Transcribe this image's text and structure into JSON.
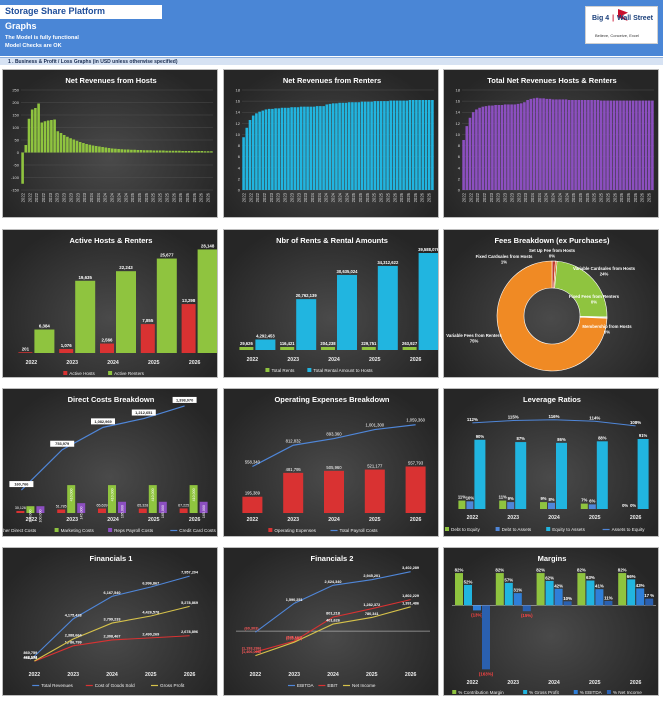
{
  "header": {
    "app_title": "Storage Share Platform",
    "sheet_title": "Graphs",
    "status_1": "The Model is fully functional",
    "status_2": "Model Checks are OK",
    "logo_text_1": "Big 4",
    "logo_text_2": "Wall Street",
    "logo_tagline": "Believe, Conceive, Excel"
  },
  "section": {
    "label": "1 .   Business & Profit / Loss Graphs (in USD unless otherwise specified)"
  },
  "colors": {
    "green": "#8fc43f",
    "cyan": "#21b5e0",
    "purple": "#8c4fc0",
    "red": "#d93232",
    "orange": "#f08a24",
    "line_blue": "#4f86d8",
    "gold": "#d6c24a"
  },
  "chart_data": [
    {
      "id": "net-rev-hosts",
      "type": "bar",
      "title": "Net Revenues from Hosts",
      "ylim": [
        -150,
        250
      ],
      "yticks": [
        -150,
        -100,
        -50,
        0,
        50,
        100,
        150,
        200,
        250
      ],
      "xtick_labels": [
        "2022",
        "2022",
        "2022",
        "2022",
        "2023",
        "2023",
        "2023",
        "2023",
        "2023",
        "2023",
        "2024",
        "2024",
        "2024",
        "2024",
        "2024",
        "2024",
        "2025",
        "2025",
        "2025",
        "2025",
        "2025",
        "2025",
        "2026",
        "2026",
        "2026",
        "2026",
        "2026",
        "2026"
      ],
      "values": [
        -125,
        30,
        135,
        172,
        178,
        196,
        120,
        125,
        128,
        130,
        132,
        85,
        78,
        70,
        63,
        57,
        52,
        47,
        42,
        38,
        34,
        31,
        28,
        26,
        24,
        22,
        20,
        18,
        16,
        15,
        14,
        13,
        12,
        12,
        11,
        11,
        10,
        10,
        9,
        9,
        9,
        8,
        8,
        8,
        8,
        7,
        7,
        7,
        7,
        7,
        6,
        6,
        6,
        6,
        6,
        6,
        6,
        5,
        5,
        5
      ]
    },
    {
      "id": "net-rev-renters",
      "type": "bar",
      "title": "Net Revenues from Renters",
      "ylim": [
        0,
        18
      ],
      "yticks": [
        0,
        2,
        4,
        6,
        8,
        10,
        12,
        14,
        16,
        18
      ],
      "xtick_labels": [
        "2022",
        "2022",
        "2022",
        "2022",
        "2023",
        "2023",
        "2023",
        "2023",
        "2023",
        "2023",
        "2024",
        "2024",
        "2024",
        "2024",
        "2024",
        "2024",
        "2025",
        "2025",
        "2025",
        "2025",
        "2025",
        "2025",
        "2026",
        "2026",
        "2026",
        "2026",
        "2026",
        "2026"
      ],
      "values": [
        9.5,
        11.2,
        12.6,
        13.4,
        13.8,
        14.1,
        14.3,
        14.5,
        14.6,
        14.6,
        14.7,
        14.7,
        14.8,
        14.8,
        14.8,
        14.9,
        14.9,
        14.9,
        15.0,
        15.0,
        15.0,
        15.0,
        15.0,
        15.1,
        15.1,
        15.1,
        15.4,
        15.5,
        15.6,
        15.6,
        15.7,
        15.7,
        15.7,
        15.8,
        15.8,
        15.8,
        15.8,
        15.9,
        15.9,
        15.9,
        15.9,
        16.0,
        16.0,
        16.0,
        16.0,
        16.0,
        16.1,
        16.1,
        16.1,
        16.1,
        16.1,
        16.1,
        16.2,
        16.2,
        16.2,
        16.2,
        16.2,
        16.2,
        16.2,
        16.2
      ]
    },
    {
      "id": "total-net-rev",
      "type": "bar",
      "title": "Total Net Revenues Hosts & Renters",
      "ylim": [
        0,
        18
      ],
      "yticks": [
        0,
        2,
        4,
        6,
        8,
        10,
        12,
        14,
        16,
        18
      ],
      "xtick_labels": [
        "2022",
        "2022",
        "2022",
        "2022",
        "2023",
        "2023",
        "2023",
        "2023",
        "2023",
        "2023",
        "2024",
        "2024",
        "2024",
        "2024",
        "2024",
        "2024",
        "2025",
        "2025",
        "2025",
        "2025",
        "2025",
        "2025",
        "2026",
        "2026",
        "2026",
        "2026",
        "2026",
        "2026"
      ],
      "values": [
        9,
        11.5,
        13,
        14,
        14.5,
        14.8,
        15,
        15.1,
        15.2,
        15.2,
        15.3,
        15.3,
        15.3,
        15.4,
        15.4,
        15.4,
        15.4,
        15.5,
        15.6,
        15.8,
        16.2,
        16.4,
        16.5,
        16.6,
        16.5,
        16.5,
        16.4,
        16.4,
        16.3,
        16.3,
        16.3,
        16.3,
        16.3,
        16.2,
        16.2,
        16.2,
        16.2,
        16.2,
        16.2,
        16.2,
        16.2,
        16.2,
        16.2,
        16.1,
        16.1,
        16.1,
        16.1,
        16.1,
        16.1,
        16.1,
        16.1,
        16.1,
        16.1,
        16.1,
        16.1,
        16.1,
        16.1,
        16.1,
        16.1,
        16.1
      ]
    },
    {
      "id": "active-hosts-renters",
      "type": "bar",
      "title": "Active Hosts & Renters",
      "categories": [
        "2022",
        "2023",
        "2024",
        "2025",
        "2026"
      ],
      "ylim": [
        0,
        28000
      ],
      "series": [
        {
          "name": "Active Hosts",
          "values": [
            201,
            1076,
            2566,
            7855,
            13298
          ],
          "labels": [
            "201",
            "1,076",
            "2,566",
            "7,855",
            "13,298"
          ]
        },
        {
          "name": "Active Renters",
          "values": [
            6384,
            19635,
            22243,
            25677,
            28148
          ],
          "labels": [
            "6,384",
            "19,635",
            "22,243",
            "25,677",
            "28,148"
          ]
        }
      ]
    },
    {
      "id": "rents-rental-amounts",
      "type": "bar",
      "title": "Nbr of Rents & Rental  Amounts",
      "categories": [
        "2022",
        "2023",
        "2024",
        "2025",
        "2026"
      ],
      "ylim": [
        0,
        40000000
      ],
      "series": [
        {
          "name": "Total Rents",
          "values": [
            29626,
            116421,
            204238,
            229751,
            263927
          ],
          "labels": [
            "29,626",
            "116,421",
            "204,238",
            "229,751",
            "263,927"
          ]
        },
        {
          "name": "Total Rental Amount to Hosts",
          "values": [
            4292453,
            20762139,
            30635024,
            34312622,
            39588076
          ],
          "labels": [
            "4,292,453",
            "20,762,139",
            "30,635,024",
            "34,312,622",
            "39,588,076"
          ]
        }
      ]
    },
    {
      "id": "fees-breakdown",
      "type": "pie",
      "title": "Fees Breakdown (ex Purchases)",
      "slices": [
        {
          "name": "Fixed Cardsales from Hosts",
          "value": 1,
          "label": "Fixed Cardsales from Hosts\n1%"
        },
        {
          "name": "Set Up Fee from Hosts",
          "value": 0.5,
          "label": "Set Up Fee from Hosts\n0%"
        },
        {
          "name": "Variable Cardsales from Hosts",
          "value": 24,
          "label": "Variable Cardsales from Hosts\n24%"
        },
        {
          "name": "Fixed Fees from Renters",
          "value": 0.2,
          "label": "Fixed Fees from Renters\n0%"
        },
        {
          "name": "Membership from Hosts",
          "value": 0.2,
          "label": "Membership from Hosts\n0%"
        },
        {
          "name": "Variable Fees from Renters",
          "value": 75,
          "label": "Variable Fees from Renters\n75%"
        }
      ]
    },
    {
      "id": "direct-costs",
      "type": "bar",
      "title": "Direct Costs Breakdown",
      "categories": [
        "2022",
        "2023",
        "2024",
        "2025",
        "2026"
      ],
      "ylim": [
        0,
        1500000
      ],
      "series": [
        {
          "name": "Other Direct Costs",
          "values": [
            30126,
            51785,
            65639,
            65328,
            67225
          ],
          "labels": [
            "30,126",
            "51,785",
            "65,639",
            "65,328",
            "67,225"
          ]
        },
        {
          "name": "Marketing Costs",
          "values": [
            100000,
            410000,
            410000,
            410000,
            410000
          ],
          "labels": [
            "100,000",
            "410,000",
            "410,000",
            "410,000",
            "410,000"
          ]
        },
        {
          "name": "Reps Payroll Costs",
          "values": [
            100000,
            145000,
            165000,
            165000,
            165000
          ],
          "labels": [
            "100,000",
            "145,000",
            "165,000",
            "165,000",
            "165,000"
          ]
        },
        {
          "name": "Credit Card Costs",
          "type": "line",
          "values": [
            160766,
            753979,
            1082969,
            1212651,
            1398070
          ],
          "labels": [
            "160,766",
            "753,979",
            "1,082,969",
            "1,212,651",
            "1,398,070"
          ]
        }
      ]
    },
    {
      "id": "operating-expenses",
      "type": "bar",
      "title": "Operating Expenses Breakdown",
      "categories": [
        "2022",
        "2023",
        "2024",
        "2025",
        "2026"
      ],
      "ylim": [
        0,
        1200000
      ],
      "series": [
        {
          "name": "Operating Expenses",
          "values": [
            195389,
            481795,
            505960,
            521177,
            557793
          ],
          "labels": [
            "195,389",
            "481,795",
            "505,960",
            "521,177",
            "557,793"
          ]
        },
        {
          "name": "Total Payroll Costs",
          "type": "line",
          "values": [
            558340,
            812832,
            893360,
            1001300,
            1059360
          ],
          "labels": [
            "558,340",
            "812,832",
            "893,360",
            "1,001,300",
            "1,059,360"
          ]
        }
      ]
    },
    {
      "id": "leverage-ratios",
      "type": "bar",
      "title": "Leverage Ratios",
      "categories": [
        "2022",
        "2023",
        "2024",
        "2025",
        "2026"
      ],
      "ylim": [
        0,
        130
      ],
      "series": [
        {
          "name": "Debt to Equity",
          "values": [
            11,
            11,
            9,
            7,
            0
          ],
          "labels": [
            "11%",
            "11%",
            "9%",
            "7%",
            "0%"
          ]
        },
        {
          "name": "Debt to Assets",
          "values": [
            10,
            9,
            8,
            6,
            0
          ],
          "labels": [
            "10%",
            "9%",
            "8%",
            "6%",
            "0%"
          ]
        },
        {
          "name": "Equity to Assets",
          "values": [
            90,
            87,
            86,
            88,
            91
          ],
          "labels": [
            "90%",
            "87%",
            "86%",
            "88%",
            "91%"
          ]
        },
        {
          "name": "Assets to Equity",
          "type": "line",
          "values": [
            112,
            115,
            116,
            114,
            108
          ],
          "labels": [
            "112%",
            "115%",
            "116%",
            "114%",
            "108%"
          ]
        }
      ]
    },
    {
      "id": "financials-1",
      "type": "line",
      "title": "Financials 1",
      "categories": [
        "2022",
        "2023",
        "2024",
        "2025",
        "2026"
      ],
      "ylim": [
        0,
        8500000
      ],
      "series": [
        {
          "name": "Total Revenues",
          "values": [
            860759,
            4175428,
            6167540,
            6996867,
            7957204
          ],
          "labels": [
            "860,759",
            "4,175,428",
            "6,167,540",
            "6,996,867",
            "7,957,204"
          ]
        },
        {
          "name": "Cost of Goods Sold",
          "values": [
            418576,
            1786799,
            2308467,
            2490269,
            2678896
          ],
          "labels": [
            "418,576",
            "1,786,799",
            "2,308,467",
            "2,490,269",
            "2,678,896"
          ]
        },
        {
          "name": "Gross Profit",
          "values": [
            442183,
            2388664,
            3799233,
            4426578,
            5278869
          ],
          "labels": [
            "442,183",
            "2,388,664",
            "3,799,233",
            "4,426,578",
            "5,278,869"
          ]
        }
      ]
    },
    {
      "id": "financials-2",
      "type": "line",
      "title": "Financials 2",
      "categories": [
        "2022",
        "2023",
        "2024",
        "2025",
        "2026"
      ],
      "ylim": [
        -2000000,
        3500000
      ],
      "series": [
        {
          "name": "EBITDA",
          "values": [
            -60303,
            1590251,
            2624340,
            2945201,
            3402289
          ],
          "labels": [
            "(60,303)",
            "1,590,251",
            "2,624,340",
            "2,945,201",
            "3,402,289"
          ]
        },
        {
          "name": "EBIT",
          "values": [
            -1193286,
            -575161,
            801218,
            1282372,
            1802229
          ],
          "labels": [
            "(1,193,286)",
            "(575,161)",
            "801,218",
            "1,282,372",
            "1,802,229"
          ]
        },
        {
          "name": "Net Income",
          "values": [
            -1406008,
            -635581,
            401626,
            780341,
            1391486
          ],
          "labels": [
            "(1,406,008)",
            "(635,581)",
            "401,626",
            "780,341",
            "1,391,486"
          ]
        }
      ]
    },
    {
      "id": "margins",
      "type": "bar",
      "title": "Margins",
      "categories": [
        "2022",
        "2023",
        "2024",
        "2025",
        "2026"
      ],
      "ylim": [
        -180,
        100
      ],
      "series": [
        {
          "name": "% Contribution Margin",
          "values": [
            82,
            82,
            82,
            82,
            82
          ],
          "labels": [
            "82%",
            "82%",
            "82%",
            "82%",
            "82%"
          ]
        },
        {
          "name": "% Gross Profit",
          "values": [
            52,
            57,
            62,
            63,
            66
          ],
          "labels": [
            "52%",
            "57%",
            "62%",
            "63%",
            "66%"
          ]
        },
        {
          "name": "% EBITDA",
          "values": [
            -13,
            31,
            42,
            41,
            43
          ],
          "labels": [
            "(13%)",
            "31%",
            "42%",
            "41%",
            "43%"
          ]
        },
        {
          "name": "% Net Income",
          "values": [
            -163,
            -15,
            10,
            11,
            17
          ],
          "labels": [
            "(163%)",
            "(15%)",
            "10%",
            "11%",
            "17 %"
          ]
        }
      ]
    }
  ]
}
